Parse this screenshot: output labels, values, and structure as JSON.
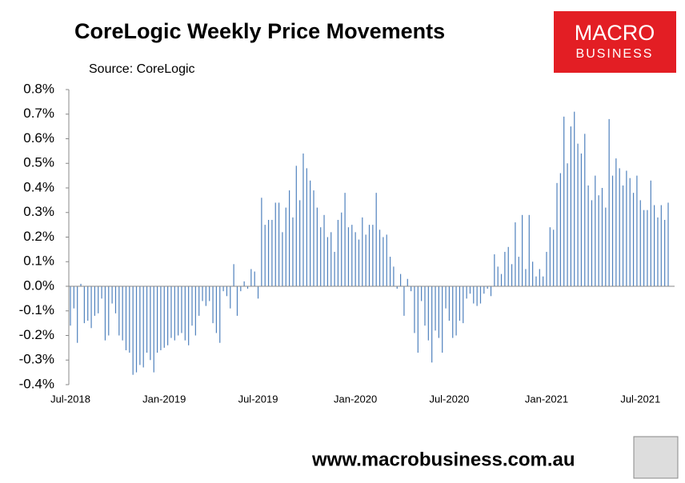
{
  "chart_data": {
    "type": "bar",
    "title": "CoreLogic Weekly Price Movements",
    "subtitle": "Source: CoreLogic",
    "logo": {
      "line1": "MACRO",
      "line2": "BUSINESS"
    },
    "footer": "www.macrobusiness.com.au",
    "color": "#4f81bd",
    "ylim": [
      -0.4,
      0.8
    ],
    "yticks": [
      {
        "value": -0.4,
        "label": "-0.4%"
      },
      {
        "value": -0.3,
        "label": "-0.3%"
      },
      {
        "value": -0.2,
        "label": "-0.2%"
      },
      {
        "value": -0.1,
        "label": "-0.1%"
      },
      {
        "value": 0,
        "label": "0.0%"
      },
      {
        "value": 0.1,
        "label": "0.1%"
      },
      {
        "value": 0.2,
        "label": "0.2%"
      },
      {
        "value": 0.3,
        "label": "0.3%"
      },
      {
        "value": 0.4,
        "label": "0.4%"
      },
      {
        "value": 0.5,
        "label": "0.5%"
      },
      {
        "value": 0.6,
        "label": "0.6%"
      },
      {
        "value": 0.7,
        "label": "0.7%"
      },
      {
        "value": 0.8,
        "label": "0.8%"
      }
    ],
    "categories": [
      "Jul-2018",
      null,
      null,
      null,
      null,
      null,
      null,
      null,
      null,
      null,
      null,
      null,
      null,
      null,
      null,
      null,
      null,
      null,
      null,
      null,
      null,
      null,
      null,
      null,
      null,
      null,
      null,
      "Jan-2019",
      null,
      null,
      null,
      null,
      null,
      null,
      null,
      null,
      null,
      null,
      null,
      null,
      null,
      null,
      null,
      null,
      null,
      null,
      null,
      null,
      null,
      null,
      null,
      null,
      null,
      null,
      "Jul-2019",
      null,
      null,
      null,
      null,
      null,
      null,
      null,
      null,
      null,
      null,
      null,
      null,
      null,
      null,
      null,
      null,
      null,
      null,
      null,
      null,
      null,
      null,
      null,
      null,
      null,
      null,
      null,
      "Jan-2020",
      null,
      null,
      null,
      null,
      null,
      null,
      null,
      null,
      null,
      null,
      null,
      null,
      null,
      null,
      null,
      null,
      null,
      null,
      null,
      null,
      null,
      null,
      null,
      null,
      null,
      null,
      "Jul-2020",
      null,
      null,
      null,
      null,
      null,
      null,
      null,
      null,
      null,
      null,
      null,
      null,
      null,
      null,
      null,
      null,
      null,
      null,
      null,
      null,
      null,
      null,
      null,
      null,
      null,
      null,
      null,
      "Jan-2021",
      null,
      null,
      null,
      null,
      null,
      null,
      null,
      null,
      null,
      null,
      null,
      null,
      null,
      null,
      null,
      null,
      null,
      null,
      null,
      null,
      null,
      null,
      null,
      null,
      null,
      null,
      "Jul-2021",
      null,
      null,
      null,
      null,
      null,
      null,
      null,
      null
    ],
    "values": [
      -0.16,
      -0.09,
      -0.23,
      0.01,
      -0.15,
      -0.14,
      -0.17,
      -0.12,
      -0.11,
      -0.05,
      -0.22,
      -0.2,
      -0.07,
      -0.11,
      -0.2,
      -0.22,
      -0.26,
      -0.27,
      -0.36,
      -0.35,
      -0.32,
      -0.33,
      -0.27,
      -0.3,
      -0.35,
      -0.27,
      -0.26,
      -0.25,
      -0.24,
      -0.21,
      -0.22,
      -0.2,
      -0.19,
      -0.22,
      -0.24,
      -0.16,
      -0.2,
      -0.12,
      -0.06,
      -0.08,
      -0.06,
      -0.15,
      -0.19,
      -0.23,
      -0.02,
      -0.04,
      -0.09,
      0.09,
      -0.12,
      -0.02,
      0.02,
      -0.01,
      0.07,
      0.06,
      -0.05,
      0.36,
      0.25,
      0.27,
      0.27,
      0.34,
      0.34,
      0.22,
      0.32,
      0.39,
      0.28,
      0.49,
      0.35,
      0.54,
      0.48,
      0.43,
      0.39,
      0.32,
      0.24,
      0.29,
      0.2,
      0.22,
      0.14,
      0.27,
      0.3,
      0.38,
      0.24,
      0.25,
      0.22,
      0.19,
      0.28,
      0.21,
      0.25,
      0.25,
      0.38,
      0.23,
      0.2,
      0.21,
      0.12,
      0.08,
      -0.01,
      0.05,
      -0.12,
      0.03,
      -0.02,
      -0.19,
      -0.27,
      -0.06,
      -0.16,
      -0.22,
      -0.31,
      -0.18,
      -0.21,
      -0.27,
      -0.09,
      -0.14,
      -0.21,
      -0.2,
      -0.14,
      -0.15,
      -0.05,
      -0.03,
      -0.07,
      -0.08,
      -0.07,
      -0.03,
      -0.01,
      -0.04,
      0.13,
      0.08,
      0.05,
      0.14,
      0.16,
      0.09,
      0.26,
      0.12,
      0.29,
      0.07,
      0.29,
      0.1,
      0.04,
      0.07,
      0.04,
      0.14,
      0.24,
      0.23,
      0.42,
      0.46,
      0.69,
      0.5,
      0.65,
      0.71,
      0.58,
      0.54,
      0.62,
      0.41,
      0.35,
      0.45,
      0.37,
      0.4,
      0.32,
      0.68,
      0.45,
      0.52,
      0.48,
      0.41,
      0.47,
      0.44,
      0.38,
      0.45,
      0.35,
      0.31,
      0.31,
      0.43,
      0.33,
      0.28,
      0.33,
      0.27,
      0.34
    ]
  }
}
